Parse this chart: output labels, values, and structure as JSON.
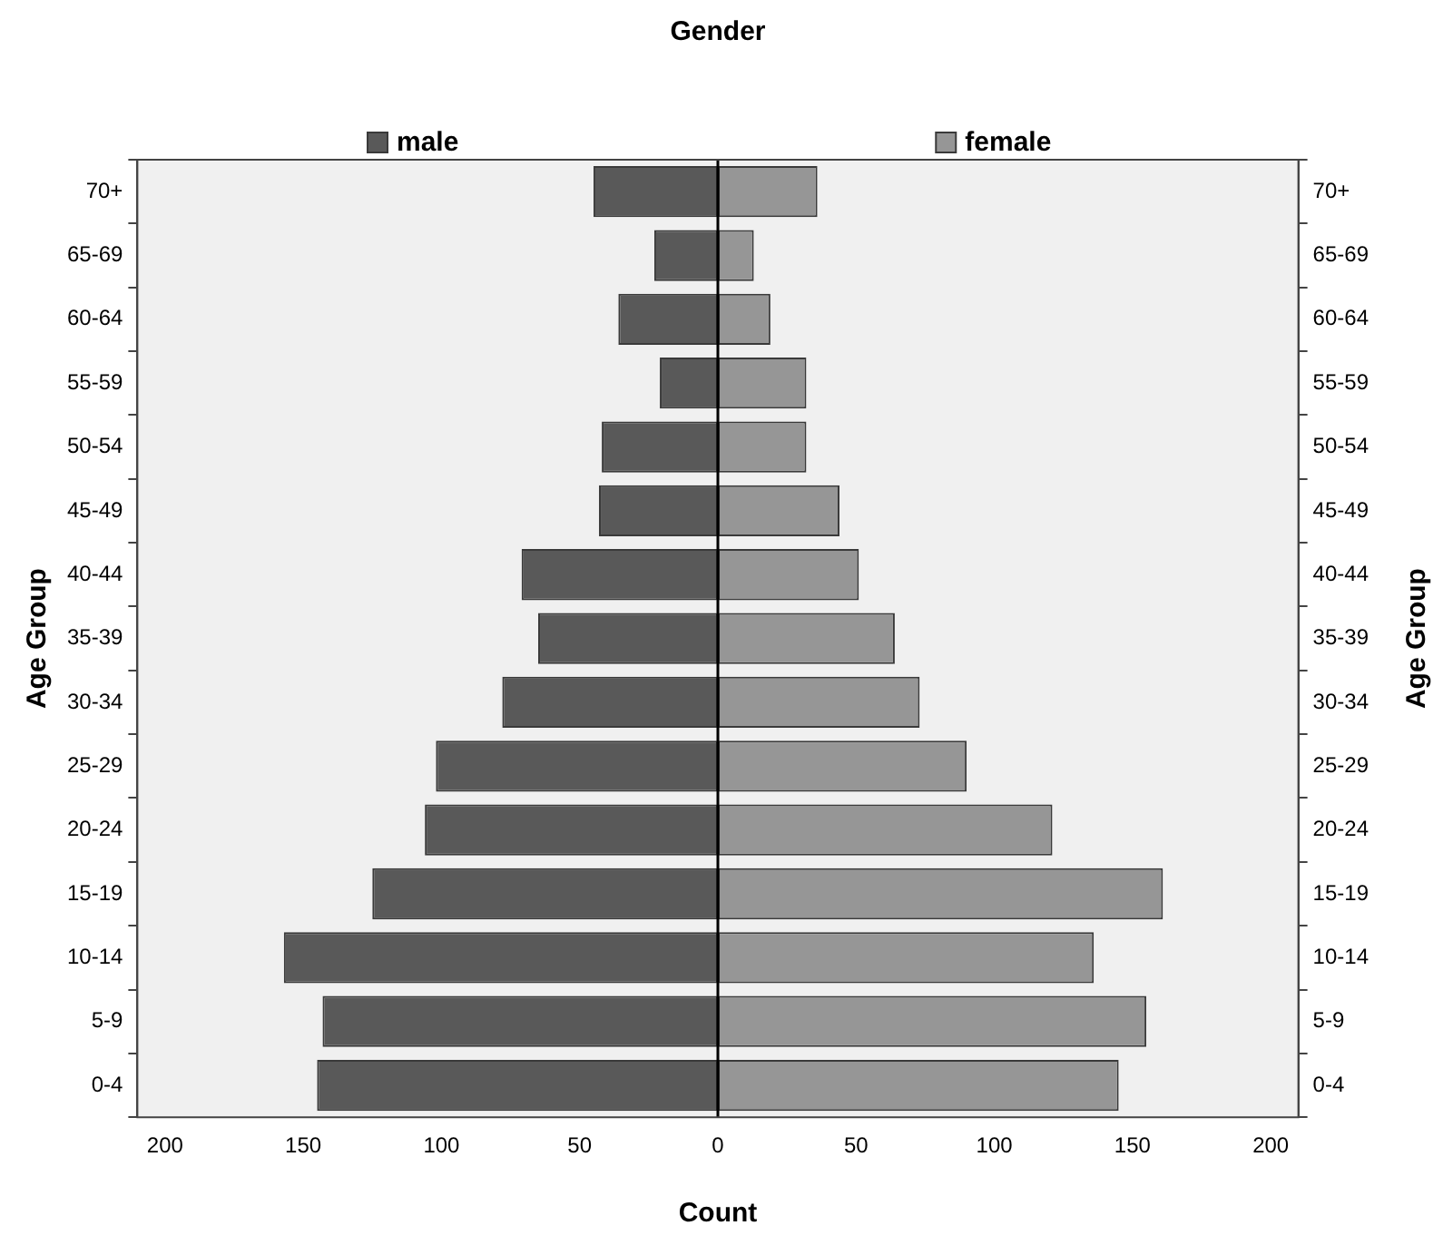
{
  "chart_data": {
    "type": "bar",
    "orientation": "horizontal",
    "stacked": true,
    "legend": "top",
    "grid": false,
    "legend_title": "Gender",
    "xlabel": "Count",
    "ylabel": "Age Group",
    "y2label": "Age Group",
    "categories": [
      "70+",
      "65-69",
      "60-64",
      "55-59",
      "50-54",
      "45-49",
      "40-44",
      "35-39",
      "30-34",
      "25-29",
      "20-24",
      "15-19",
      "10-14",
      "5-9",
      "0-4"
    ],
    "series": [
      {
        "name": "male",
        "color": "#595959",
        "values": [
          -45,
          -23,
          -36,
          -21,
          -42,
          -43,
          -71,
          -65,
          -78,
          -102,
          -106,
          -125,
          -157,
          -143,
          -145
        ]
      },
      {
        "name": "female",
        "color": "#969696",
        "values": [
          36,
          13,
          19,
          32,
          32,
          44,
          51,
          64,
          73,
          90,
          121,
          161,
          136,
          155,
          145
        ]
      }
    ],
    "xlim": [
      -210,
      210
    ],
    "xticks": [
      {
        "value": -200,
        "label": "200"
      },
      {
        "value": -150,
        "label": "150"
      },
      {
        "value": -100,
        "label": "100"
      },
      {
        "value": -50,
        "label": "50"
      },
      0,
      50,
      100,
      150,
      200
    ],
    "ref_lines": [
      {
        "axis": "x",
        "value": 0,
        "color": "#000000"
      }
    ]
  }
}
